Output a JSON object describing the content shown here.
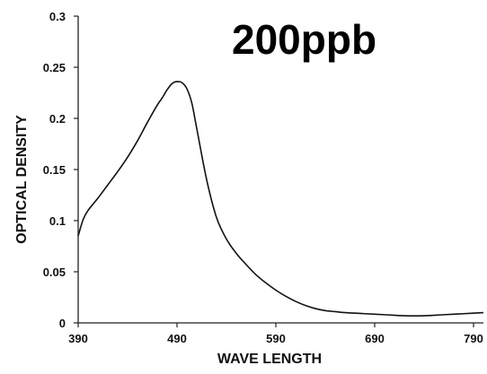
{
  "chart_data": {
    "type": "line",
    "title": "200ppb",
    "xlabel": "WAVE LENGTH",
    "ylabel": "OPTICAL DENSITY",
    "xlim": [
      390,
      800
    ],
    "ylim": [
      0,
      0.3
    ],
    "xticks": [
      "390",
      "490",
      "590",
      "690",
      "790"
    ],
    "xtick_values": [
      390,
      490,
      590,
      690,
      790
    ],
    "yticks": [
      "0",
      "0.05",
      "0.1",
      "0.15",
      "0.2",
      "0.25",
      "0.3"
    ],
    "ytick_values": [
      0,
      0.05,
      0.1,
      0.15,
      0.2,
      0.25,
      0.3
    ],
    "grid": false,
    "series": [
      {
        "x": [
          390,
          395,
          400,
          410,
          420,
          430,
          440,
          450,
          460,
          470,
          475,
          480,
          485,
          490,
          495,
          500,
          505,
          510,
          520,
          530,
          540,
          550,
          560,
          570,
          580,
          590,
          600,
          610,
          620,
          630,
          640,
          650,
          660,
          680,
          700,
          720,
          740,
          760,
          780,
          800
        ],
        "y": [
          0.085,
          0.101,
          0.11,
          0.122,
          0.135,
          0.148,
          0.162,
          0.178,
          0.196,
          0.213,
          0.22,
          0.228,
          0.234,
          0.236,
          0.235,
          0.229,
          0.215,
          0.19,
          0.14,
          0.103,
          0.082,
          0.068,
          0.057,
          0.047,
          0.039,
          0.032,
          0.026,
          0.021,
          0.017,
          0.014,
          0.012,
          0.011,
          0.01,
          0.009,
          0.008,
          0.007,
          0.007,
          0.008,
          0.009,
          0.01
        ]
      }
    ]
  }
}
